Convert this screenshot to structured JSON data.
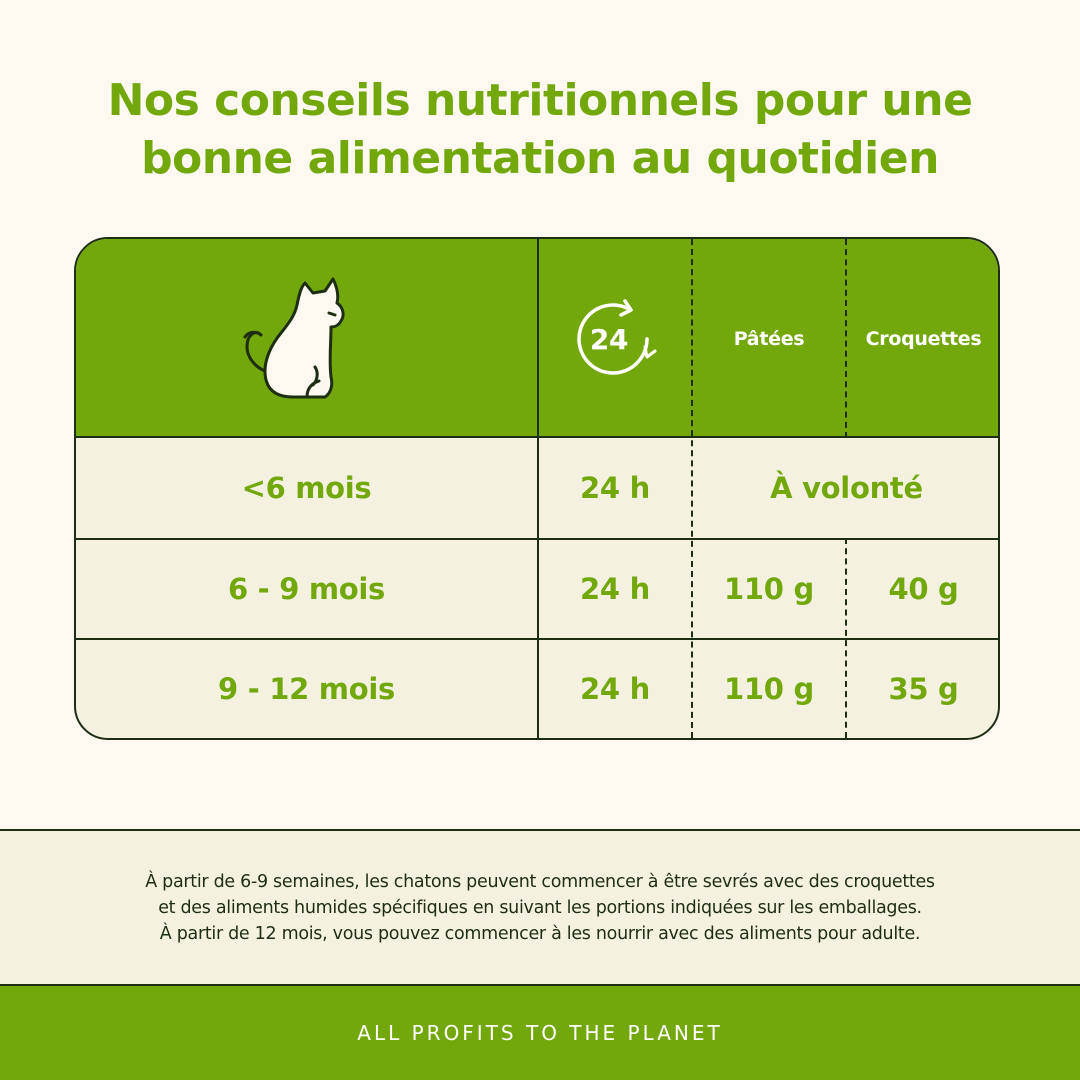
{
  "title": {
    "line1": "Nos conseils nutritionnels pour une",
    "line2": "bonne alimentation au quotidien"
  },
  "table": {
    "header": {
      "cat_icon": "cat-icon",
      "clock_icon": "24h-clock-icon",
      "clock_text": "24",
      "col_patees": "Pâtées",
      "col_croquettes": "Croquettes"
    },
    "rows": [
      {
        "age": "<6 mois",
        "duration": "24 h",
        "merged": "À volonté"
      },
      {
        "age": "6 - 9 mois",
        "duration": "24 h",
        "patees": "110 g",
        "croquettes": "40 g"
      },
      {
        "age": "9 - 12 mois",
        "duration": "24 h",
        "patees": "110 g",
        "croquettes": "35 g"
      }
    ]
  },
  "note": {
    "line1": "À partir de 6-9 semaines, les chatons peuvent commencer à être sevrés avec des croquettes",
    "line2": "et des aliments humides spécifiques en suivant les portions indiquées sur les emballages.",
    "line3": "À partir de 12 mois, vous pouvez commencer à les nourrir avec des aliments pour adulte."
  },
  "footer": {
    "text": "ALL PROFITS TO THE PLANET"
  },
  "colors": {
    "green": "#72a80c",
    "cream": "#fdf9f1",
    "panel": "#f5f1e1",
    "ink": "#1d2e12"
  }
}
